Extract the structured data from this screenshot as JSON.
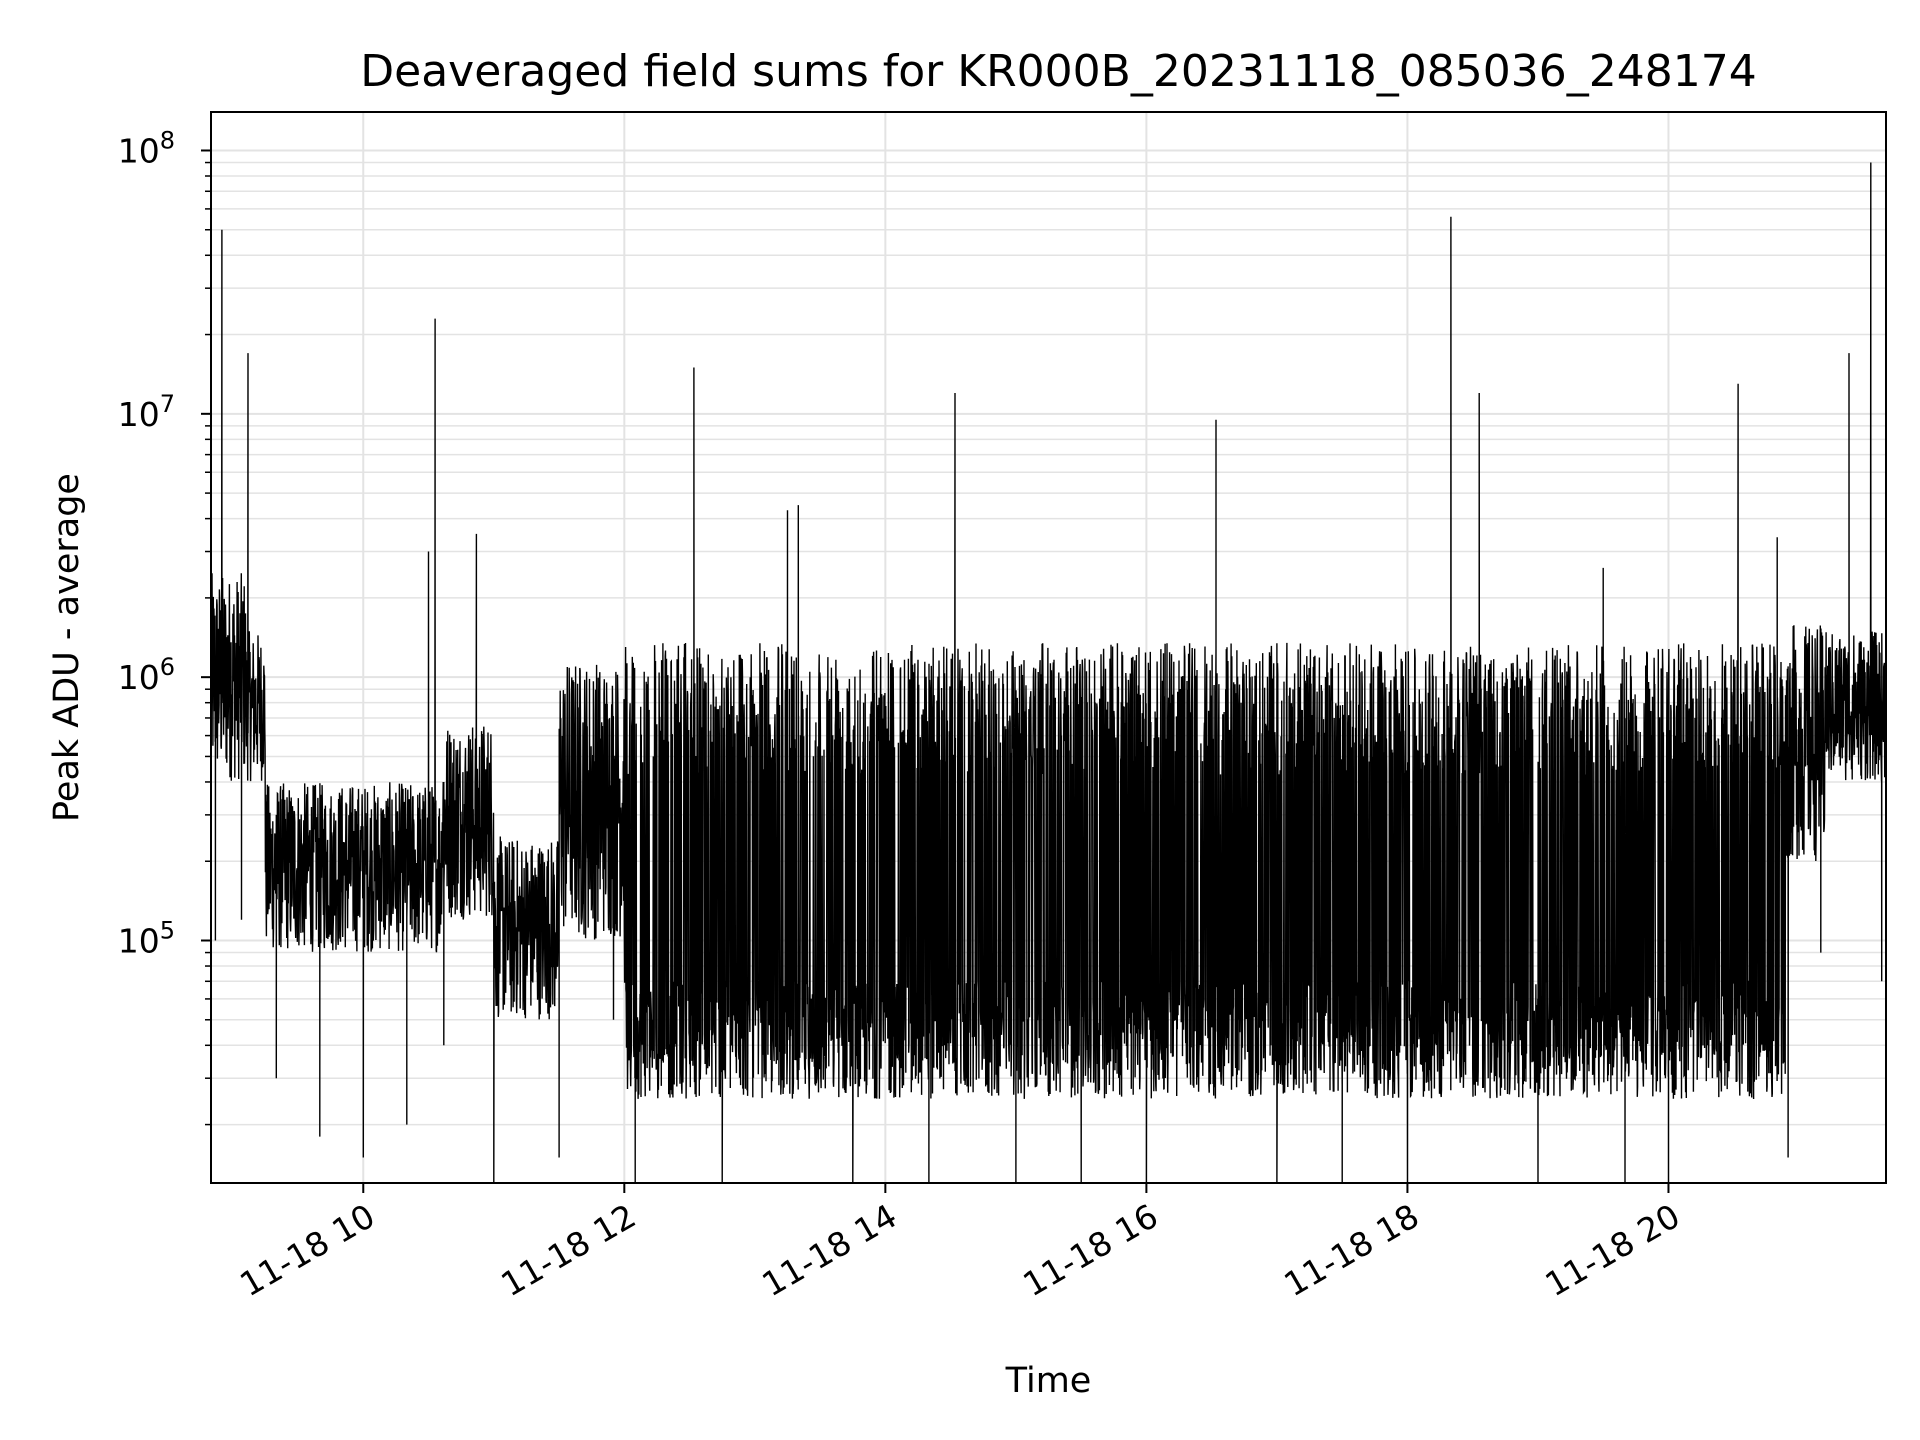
{
  "chart_data": {
    "type": "line",
    "title": "Deaveraged field sums for KR000B_20231118_085036_248174",
    "xlabel": "Time",
    "ylabel": "Peak ADU - average",
    "yscale": "log",
    "ylim": [
      12000,
      140000000
    ],
    "xlim": [
      "2023-11-18 08:50",
      "2023-11-18 21:40"
    ],
    "grid": true,
    "line_color": "#000000",
    "grid_color": "#e3e3e3",
    "x_ticks": [
      "11-18 10",
      "11-18 12",
      "11-18 14",
      "11-18 16",
      "11-18 18",
      "11-18 20"
    ],
    "y_ticks": [
      {
        "base": "10",
        "exp": "5"
      },
      {
        "base": "10",
        "exp": "6"
      },
      {
        "base": "10",
        "exp": "7"
      },
      {
        "base": "10",
        "exp": "8"
      }
    ],
    "x": [
      "2023-11-18 08:52",
      "2023-11-18 08:55",
      "2023-11-18 09:04",
      "2023-11-18 09:07",
      "2023-11-18 09:20",
      "2023-11-18 09:40",
      "2023-11-18 10:00",
      "2023-11-18 10:20",
      "2023-11-18 10:30",
      "2023-11-18 10:33",
      "2023-11-18 10:37",
      "2023-11-18 10:52",
      "2023-11-18 11:00",
      "2023-11-18 11:30",
      "2023-11-18 11:55",
      "2023-11-18 12:05",
      "2023-11-18 12:32",
      "2023-11-18 12:45",
      "2023-11-18 13:15",
      "2023-11-18 13:20",
      "2023-11-18 13:45",
      "2023-11-18 14:20",
      "2023-11-18 14:32",
      "2023-11-18 15:00",
      "2023-11-18 15:30",
      "2023-11-18 16:00",
      "2023-11-18 16:32",
      "2023-11-18 17:00",
      "2023-11-18 17:30",
      "2023-11-18 18:00",
      "2023-11-18 18:20",
      "2023-11-18 18:33",
      "2023-11-18 19:00",
      "2023-11-18 19:30",
      "2023-11-18 19:40",
      "2023-11-18 20:00",
      "2023-11-18 20:32",
      "2023-11-18 20:50",
      "2023-11-18 20:55",
      "2023-11-18 21:10",
      "2023-11-18 21:23",
      "2023-11-18 21:33",
      "2023-11-18 21:38"
    ],
    "y": [
      1000000,
      50000000,
      1200000,
      17000000,
      300000,
      180000,
      150000,
      200000,
      3000000,
      23000000,
      400000,
      3500000,
      80000,
      150000,
      500000,
      60000,
      15000000,
      50000,
      4300000,
      4500000,
      45000,
      40000,
      12000000,
      35000,
      30000,
      35000,
      9500000,
      30000,
      28000,
      33000,
      56000000,
      12000000,
      35000,
      2600000,
      38000,
      40000,
      13000000,
      3400000,
      150000,
      900000,
      17000000,
      90000000,
      700000
    ]
  }
}
